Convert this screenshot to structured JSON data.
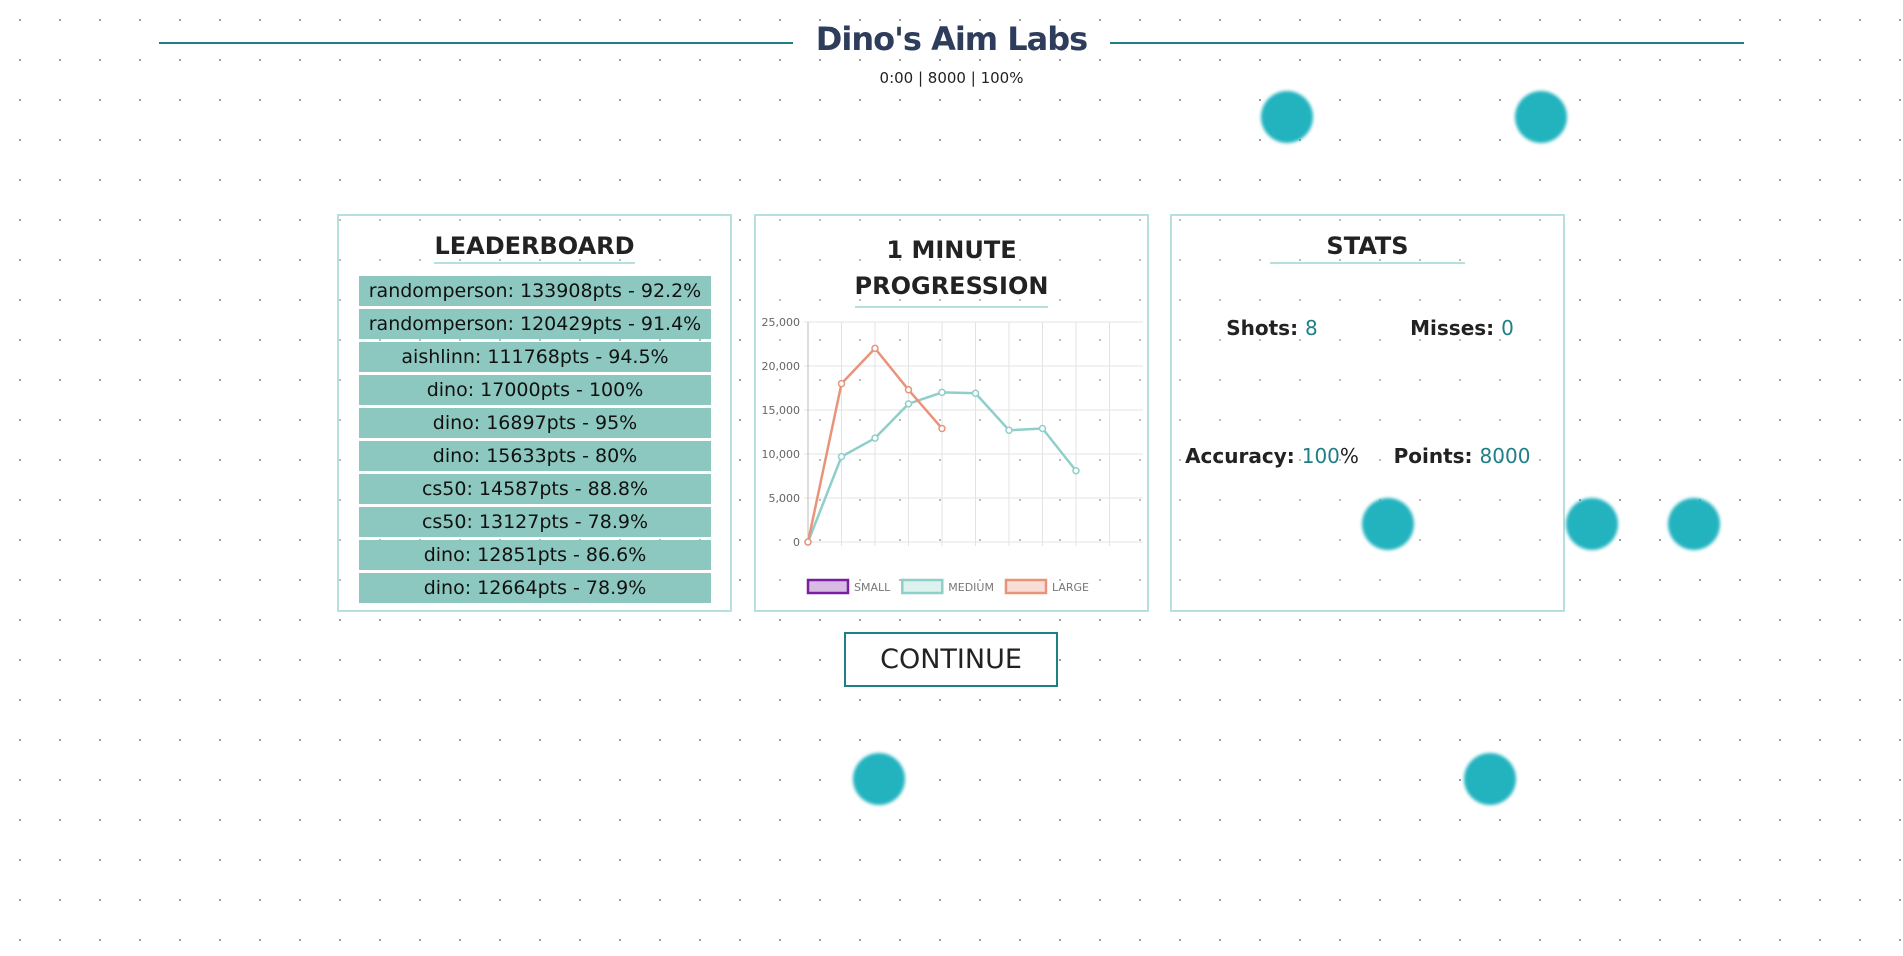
{
  "header": {
    "title": "Dino's Aim Labs",
    "status": "0:00 | 8000 | 100%"
  },
  "leaderboard": {
    "title": "LEADERBOARD",
    "entries": [
      "randomperson: 133908pts - 92.2%",
      "randomperson: 120429pts - 91.4%",
      "aishlinn: 111768pts - 94.5%",
      "dino: 17000pts - 100%",
      "dino: 16897pts - 95%",
      "dino: 15633pts - 80%",
      "cs50: 14587pts - 88.8%",
      "cs50: 13127pts - 78.9%",
      "dino: 12851pts - 86.6%",
      "dino: 12664pts - 78.9%"
    ]
  },
  "chart_data": {
    "type": "line",
    "title": "1 MINUTE PROGRESSION",
    "categories": [
      null,
      null,
      null,
      null,
      null,
      null,
      null,
      null,
      null,
      null
    ],
    "series": [
      {
        "name": "SMALL",
        "color": "#7b1fa2",
        "values": [
          null,
          null,
          null,
          null,
          null,
          null,
          null,
          null,
          null,
          null
        ]
      },
      {
        "name": "MEDIUM",
        "color": "#8ecfc9",
        "values": [
          0,
          9700,
          11800,
          15700,
          17000,
          16900,
          12700,
          12900,
          8100,
          null
        ]
      },
      {
        "name": "LARGE",
        "color": "#e8937a",
        "values": [
          0,
          18000,
          22000,
          17300,
          12900,
          null,
          null,
          null,
          null,
          null
        ]
      }
    ],
    "ylim": [
      0,
      25000
    ],
    "yticks": [
      0,
      {
        "value": 5000,
        "label": "5,000"
      },
      {
        "value": 10000,
        "label": "10,000"
      },
      {
        "value": 15000,
        "label": "15,000"
      },
      {
        "value": 20000,
        "label": "20,000"
      },
      {
        "value": 25000,
        "label": "25,000"
      }
    ],
    "grid": true,
    "legend": "bottom"
  },
  "stats": {
    "title": "STATS",
    "items": [
      {
        "label": "Shots:",
        "value": "8"
      },
      {
        "label": "Misses:",
        "value": "0"
      },
      {
        "label": "Accuracy:",
        "value": "100",
        "unit": "%"
      },
      {
        "label": "Points:",
        "value": "8000"
      }
    ]
  },
  "button": {
    "label": "CONTINUE"
  }
}
